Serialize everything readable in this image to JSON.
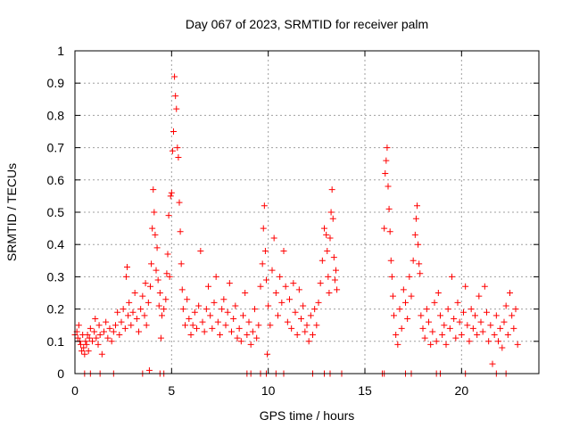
{
  "chart_data": {
    "type": "scatter",
    "title": "Day 067 of 2023, SRMTID for receiver palm",
    "xlabel": "GPS time / hours",
    "ylabel": "SRMTID / TECUs",
    "xlim": [
      0,
      24
    ],
    "ylim": [
      0,
      1
    ],
    "x_ticks": [
      0,
      5,
      10,
      15,
      20
    ],
    "x_tick_labels": [
      "0",
      "5",
      "10",
      "15",
      "20"
    ],
    "y_ticks": [
      0,
      0.1,
      0.2,
      0.3,
      0.4,
      0.5,
      0.6,
      0.7,
      0.8,
      0.9,
      1
    ],
    "y_tick_labels": [
      "0",
      "0.1",
      "0.2",
      "0.3",
      "0.4",
      "0.5",
      "0.6",
      "0.7",
      "0.8",
      "0.9",
      "1"
    ],
    "grid": true,
    "marker": "plus",
    "color": "#ff0000",
    "series": [
      {
        "name": "SRMTID",
        "points": [
          [
            0.0,
            0.12
          ],
          [
            0.1,
            0.13
          ],
          [
            0.15,
            0.11
          ],
          [
            0.2,
            0.15
          ],
          [
            0.25,
            0.1
          ],
          [
            0.3,
            0.09
          ],
          [
            0.35,
            0.07
          ],
          [
            0.4,
            0.12
          ],
          [
            0.45,
            0.08
          ],
          [
            0.5,
            0.06
          ],
          [
            0.55,
            0.1
          ],
          [
            0.6,
            0.09
          ],
          [
            0.65,
            0.12
          ],
          [
            0.7,
            0.07
          ],
          [
            0.75,
            0.11
          ],
          [
            0.8,
            0.14
          ],
          [
            0.9,
            0.1
          ],
          [
            1.0,
            0.13
          ],
          [
            1.05,
            0.17
          ],
          [
            1.1,
            0.11
          ],
          [
            1.2,
            0.09
          ],
          [
            1.25,
            0.15
          ],
          [
            1.3,
            0.12
          ],
          [
            1.4,
            0.06
          ],
          [
            1.5,
            0.13
          ],
          [
            1.6,
            0.16
          ],
          [
            1.7,
            0.11
          ],
          [
            1.8,
            0.14
          ],
          [
            1.9,
            0.1
          ],
          [
            2.0,
            0.13
          ],
          [
            2.1,
            0.15
          ],
          [
            2.2,
            0.19
          ],
          [
            2.3,
            0.12
          ],
          [
            2.4,
            0.16
          ],
          [
            2.5,
            0.2
          ],
          [
            2.6,
            0.14
          ],
          [
            2.65,
            0.3
          ],
          [
            2.7,
            0.33
          ],
          [
            2.75,
            0.18
          ],
          [
            2.8,
            0.22
          ],
          [
            2.9,
            0.15
          ],
          [
            3.0,
            0.19
          ],
          [
            3.1,
            0.25
          ],
          [
            3.2,
            0.17
          ],
          [
            3.3,
            0.13
          ],
          [
            3.4,
            0.2
          ],
          [
            3.5,
            0.24
          ],
          [
            3.6,
            0.18
          ],
          [
            3.65,
            0.28
          ],
          [
            3.7,
            0.15
          ],
          [
            3.8,
            0.22
          ],
          [
            3.85,
            0.01
          ],
          [
            3.9,
            0.27
          ],
          [
            3.95,
            0.34
          ],
          [
            4.0,
            0.45
          ],
          [
            4.05,
            0.57
          ],
          [
            4.1,
            0.5
          ],
          [
            4.15,
            0.43
          ],
          [
            4.2,
            0.32
          ],
          [
            4.25,
            0.39
          ],
          [
            4.3,
            0.29
          ],
          [
            4.35,
            0.21
          ],
          [
            4.4,
            0.25
          ],
          [
            4.45,
            0.11
          ],
          [
            4.5,
            0.18
          ],
          [
            4.6,
            0.2
          ],
          [
            4.7,
            0.23
          ],
          [
            4.75,
            0.31
          ],
          [
            4.8,
            0.37
          ],
          [
            4.85,
            0.49
          ],
          [
            4.9,
            0.3
          ],
          [
            4.95,
            0.55
          ],
          [
            5.0,
            0.56
          ],
          [
            5.05,
            0.69
          ],
          [
            5.1,
            0.75
          ],
          [
            5.15,
            0.92
          ],
          [
            5.2,
            0.86
          ],
          [
            5.25,
            0.82
          ],
          [
            5.3,
            0.7
          ],
          [
            5.35,
            0.67
          ],
          [
            5.4,
            0.53
          ],
          [
            5.45,
            0.44
          ],
          [
            5.5,
            0.34
          ],
          [
            5.55,
            0.26
          ],
          [
            5.6,
            0.2
          ],
          [
            5.7,
            0.15
          ],
          [
            5.8,
            0.23
          ],
          [
            5.9,
            0.17
          ],
          [
            6.0,
            0.12
          ],
          [
            6.1,
            0.15
          ],
          [
            6.2,
            0.19
          ],
          [
            6.3,
            0.14
          ],
          [
            6.4,
            0.21
          ],
          [
            6.5,
            0.38
          ],
          [
            6.6,
            0.16
          ],
          [
            6.7,
            0.13
          ],
          [
            6.8,
            0.2
          ],
          [
            6.9,
            0.27
          ],
          [
            7.0,
            0.18
          ],
          [
            7.1,
            0.14
          ],
          [
            7.2,
            0.22
          ],
          [
            7.3,
            0.3
          ],
          [
            7.4,
            0.16
          ],
          [
            7.5,
            0.12
          ],
          [
            7.6,
            0.2
          ],
          [
            7.7,
            0.23
          ],
          [
            7.8,
            0.15
          ],
          [
            7.9,
            0.19
          ],
          [
            8.0,
            0.28
          ],
          [
            8.1,
            0.13
          ],
          [
            8.2,
            0.17
          ],
          [
            8.3,
            0.21
          ],
          [
            8.4,
            0.11
          ],
          [
            8.5,
            0.14
          ],
          [
            8.6,
            0.1
          ],
          [
            8.7,
            0.18
          ],
          [
            8.8,
            0.25
          ],
          [
            8.9,
            0.12
          ],
          [
            9.0,
            0.16
          ],
          [
            9.1,
            0.09
          ],
          [
            9.2,
            0.13
          ],
          [
            9.3,
            0.2
          ],
          [
            9.4,
            0.11
          ],
          [
            9.5,
            0.15
          ],
          [
            9.6,
            0.27
          ],
          [
            9.7,
            0.34
          ],
          [
            9.75,
            0.45
          ],
          [
            9.8,
            0.52
          ],
          [
            9.85,
            0.38
          ],
          [
            9.9,
            0.29
          ],
          [
            9.95,
            0.06
          ],
          [
            10.0,
            0.21
          ],
          [
            10.1,
            0.15
          ],
          [
            10.2,
            0.32
          ],
          [
            10.3,
            0.42
          ],
          [
            10.4,
            0.25
          ],
          [
            10.5,
            0.18
          ],
          [
            10.6,
            0.3
          ],
          [
            10.7,
            0.22
          ],
          [
            10.8,
            0.38
          ],
          [
            10.9,
            0.27
          ],
          [
            11.0,
            0.16
          ],
          [
            11.1,
            0.23
          ],
          [
            11.2,
            0.14
          ],
          [
            11.3,
            0.28
          ],
          [
            11.4,
            0.19
          ],
          [
            11.5,
            0.12
          ],
          [
            11.6,
            0.26
          ],
          [
            11.7,
            0.17
          ],
          [
            11.8,
            0.21
          ],
          [
            11.9,
            0.13
          ],
          [
            12.0,
            0.15
          ],
          [
            12.1,
            0.1
          ],
          [
            12.2,
            0.18
          ],
          [
            12.3,
            0.12
          ],
          [
            12.4,
            0.2
          ],
          [
            12.5,
            0.15
          ],
          [
            12.6,
            0.22
          ],
          [
            12.7,
            0.28
          ],
          [
            12.8,
            0.35
          ],
          [
            12.9,
            0.45
          ],
          [
            13.0,
            0.43
          ],
          [
            13.05,
            0.38
          ],
          [
            13.1,
            0.3
          ],
          [
            13.15,
            0.25
          ],
          [
            13.2,
            0.42
          ],
          [
            13.25,
            0.5
          ],
          [
            13.3,
            0.57
          ],
          [
            13.35,
            0.48
          ],
          [
            13.4,
            0.36
          ],
          [
            13.45,
            0.29
          ],
          [
            13.5,
            0.32
          ],
          [
            13.55,
            0.26
          ],
          [
            16.0,
            0.45
          ],
          [
            16.05,
            0.62
          ],
          [
            16.1,
            0.66
          ],
          [
            16.15,
            0.7
          ],
          [
            16.2,
            0.58
          ],
          [
            16.25,
            0.51
          ],
          [
            16.3,
            0.44
          ],
          [
            16.35,
            0.35
          ],
          [
            16.4,
            0.3
          ],
          [
            16.45,
            0.24
          ],
          [
            16.5,
            0.18
          ],
          [
            16.6,
            0.12
          ],
          [
            16.7,
            0.09
          ],
          [
            16.8,
            0.2
          ],
          [
            16.9,
            0.14
          ],
          [
            17.0,
            0.26
          ],
          [
            17.1,
            0.22
          ],
          [
            17.2,
            0.17
          ],
          [
            17.3,
            0.3
          ],
          [
            17.4,
            0.24
          ],
          [
            17.5,
            0.35
          ],
          [
            17.6,
            0.43
          ],
          [
            17.65,
            0.48
          ],
          [
            17.7,
            0.52
          ],
          [
            17.75,
            0.4
          ],
          [
            17.8,
            0.34
          ],
          [
            17.85,
            0.31
          ],
          [
            17.9,
            0.18
          ],
          [
            18.0,
            0.14
          ],
          [
            18.1,
            0.11
          ],
          [
            18.2,
            0.2
          ],
          [
            18.3,
            0.16
          ],
          [
            18.4,
            0.09
          ],
          [
            18.5,
            0.13
          ],
          [
            18.6,
            0.22
          ],
          [
            18.7,
            0.1
          ],
          [
            18.8,
            0.25
          ],
          [
            18.9,
            0.18
          ],
          [
            19.0,
            0.12
          ],
          [
            19.1,
            0.15
          ],
          [
            19.2,
            0.09
          ],
          [
            19.3,
            0.2
          ],
          [
            19.4,
            0.14
          ],
          [
            19.5,
            0.3
          ],
          [
            19.6,
            0.17
          ],
          [
            19.7,
            0.11
          ],
          [
            19.8,
            0.22
          ],
          [
            19.9,
            0.16
          ],
          [
            20.0,
            0.12
          ],
          [
            20.1,
            0.19
          ],
          [
            20.2,
            0.27
          ],
          [
            20.3,
            0.15
          ],
          [
            20.4,
            0.1
          ],
          [
            20.5,
            0.2
          ],
          [
            20.6,
            0.14
          ],
          [
            20.7,
            0.18
          ],
          [
            20.8,
            0.12
          ],
          [
            20.9,
            0.24
          ],
          [
            21.0,
            0.16
          ],
          [
            21.1,
            0.13
          ],
          [
            21.2,
            0.27
          ],
          [
            21.3,
            0.19
          ],
          [
            21.4,
            0.1
          ],
          [
            21.5,
            0.15
          ],
          [
            21.6,
            0.03
          ],
          [
            21.7,
            0.12
          ],
          [
            21.8,
            0.18
          ],
          [
            21.9,
            0.1
          ],
          [
            22.0,
            0.14
          ],
          [
            22.1,
            0.08
          ],
          [
            22.2,
            0.16
          ],
          [
            22.3,
            0.21
          ],
          [
            22.4,
            0.12
          ],
          [
            22.5,
            0.25
          ],
          [
            22.6,
            0.18
          ],
          [
            22.7,
            0.14
          ],
          [
            22.8,
            0.2
          ],
          [
            22.9,
            0.09
          ]
        ]
      }
    ],
    "zero_points_x": [
      0.5,
      0.8,
      1.3,
      2.0,
      3.5,
      4.4,
      4.6,
      8.9,
      9.1,
      9.6,
      9.9,
      10.4,
      10.8,
      12.3,
      12.9,
      13.2,
      13.8,
      15.9,
      16.0,
      17.1,
      17.4,
      18.7,
      18.9,
      20.2,
      21.8,
      22.3
    ]
  }
}
